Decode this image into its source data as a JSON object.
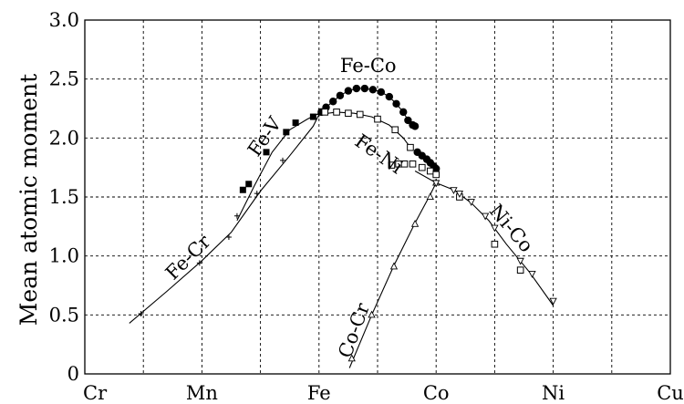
{
  "chart_data": {
    "type": "scatter",
    "title": "",
    "xlabel": "",
    "ylabel": "Mean atomic moment",
    "categories": [
      "Cr",
      "Mn",
      "Fe",
      "Co",
      "Ni",
      "Cu"
    ],
    "x_category_positions": [
      24,
      25,
      26,
      27,
      28,
      29
    ],
    "xlim": [
      24,
      29
    ],
    "ylim": [
      0,
      3.0
    ],
    "y_ticks": [
      0,
      0.5,
      1.0,
      1.5,
      2.0,
      2.5,
      3.0
    ],
    "y_tick_labels": [
      "0",
      "0.5",
      "1.0",
      "1.5",
      "2.0",
      "2.5",
      "3.0"
    ],
    "grid": true,
    "legend": "none",
    "series": [
      {
        "name": "Fe-Co",
        "marker": "filled-circle",
        "points": [
          [
            26.02,
            2.22
          ],
          [
            26.06,
            2.26
          ],
          [
            26.12,
            2.31
          ],
          [
            26.18,
            2.36
          ],
          [
            26.25,
            2.4
          ],
          [
            26.32,
            2.42
          ],
          [
            26.39,
            2.42
          ],
          [
            26.46,
            2.41
          ],
          [
            26.53,
            2.39
          ],
          [
            26.6,
            2.35
          ],
          [
            26.66,
            2.29
          ],
          [
            26.72,
            2.22
          ],
          [
            26.76,
            2.15
          ],
          [
            26.8,
            2.11
          ],
          [
            26.82,
            2.1
          ],
          [
            26.84,
            1.88
          ],
          [
            26.88,
            1.85
          ],
          [
            26.92,
            1.82
          ],
          [
            26.95,
            1.79
          ],
          [
            26.98,
            1.76
          ],
          [
            27.0,
            1.74
          ]
        ],
        "curve": [
          [
            26.0,
            2.2
          ],
          [
            26.06,
            2.26
          ],
          [
            26.12,
            2.31
          ],
          [
            26.18,
            2.36
          ],
          [
            26.25,
            2.4
          ],
          [
            26.32,
            2.42
          ],
          [
            26.39,
            2.42
          ],
          [
            26.46,
            2.41
          ],
          [
            26.53,
            2.39
          ],
          [
            26.6,
            2.35
          ],
          [
            26.66,
            2.29
          ],
          [
            26.72,
            2.22
          ],
          [
            26.76,
            2.15
          ],
          [
            26.82,
            2.1
          ]
        ]
      },
      {
        "name": "Fe-V",
        "marker": "filled-square",
        "points": [
          [
            25.35,
            1.56
          ],
          [
            25.4,
            1.61
          ],
          [
            25.55,
            1.88
          ],
          [
            25.72,
            2.05
          ],
          [
            25.8,
            2.13
          ],
          [
            25.95,
            2.18
          ],
          [
            26.02,
            2.22
          ]
        ],
        "curve": [
          [
            25.3,
            1.3
          ],
          [
            25.45,
            1.6
          ],
          [
            25.6,
            1.88
          ],
          [
            25.75,
            2.07
          ],
          [
            25.9,
            2.16
          ],
          [
            26.02,
            2.22
          ]
        ]
      },
      {
        "name": "Fe-Ni",
        "marker": "open-square",
        "points": [
          [
            26.05,
            2.22
          ],
          [
            26.15,
            2.22
          ],
          [
            26.25,
            2.21
          ],
          [
            26.35,
            2.2
          ],
          [
            26.5,
            2.16
          ],
          [
            26.65,
            2.07
          ],
          [
            26.78,
            1.92
          ],
          [
            26.62,
            1.77
          ],
          [
            26.68,
            1.78
          ],
          [
            26.73,
            1.78
          ],
          [
            26.8,
            1.78
          ],
          [
            26.88,
            1.75
          ],
          [
            26.95,
            1.72
          ],
          [
            27.0,
            1.69
          ],
          [
            27.2,
            1.5
          ],
          [
            27.5,
            1.1
          ],
          [
            27.72,
            0.88
          ]
        ],
        "curve": [
          [
            26.0,
            2.2
          ],
          [
            26.15,
            2.22
          ],
          [
            26.3,
            2.21
          ],
          [
            26.45,
            2.18
          ],
          [
            26.6,
            2.11
          ],
          [
            26.72,
            2.0
          ],
          [
            26.78,
            1.92
          ]
        ]
      },
      {
        "name": "Fe-Cr",
        "marker": "plus",
        "points": [
          [
            24.48,
            0.51
          ],
          [
            24.98,
            0.94
          ],
          [
            25.23,
            1.16
          ],
          [
            25.3,
            1.34
          ],
          [
            25.47,
            1.53
          ],
          [
            25.69,
            1.81
          ],
          [
            26.0,
            2.2
          ]
        ],
        "curve": [
          [
            24.38,
            0.43
          ],
          [
            24.7,
            0.7
          ],
          [
            25.0,
            0.96
          ],
          [
            25.25,
            1.2
          ],
          [
            25.5,
            1.55
          ],
          [
            25.75,
            1.85
          ],
          [
            25.95,
            2.1
          ],
          [
            26.0,
            2.2
          ]
        ]
      },
      {
        "name": "Co-Cr",
        "marker": "open-triangle-up",
        "points": [
          [
            26.28,
            0.13
          ],
          [
            26.45,
            0.5
          ],
          [
            26.64,
            0.91
          ],
          [
            26.82,
            1.27
          ],
          [
            26.95,
            1.5
          ],
          [
            27.0,
            1.62
          ]
        ],
        "curve": [
          [
            26.26,
            0.05
          ],
          [
            26.45,
            0.5
          ],
          [
            26.64,
            0.92
          ],
          [
            26.82,
            1.28
          ],
          [
            26.95,
            1.52
          ],
          [
            27.0,
            1.62
          ]
        ]
      },
      {
        "name": "Ni-Co",
        "marker": "open-triangle-down",
        "points": [
          [
            27.0,
            1.62
          ],
          [
            27.15,
            1.56
          ],
          [
            27.2,
            1.53
          ],
          [
            27.3,
            1.46
          ],
          [
            27.42,
            1.34
          ],
          [
            27.5,
            1.24
          ],
          [
            27.72,
            0.96
          ],
          [
            27.82,
            0.85
          ],
          [
            28.0,
            0.62
          ]
        ],
        "curve": [
          [
            26.82,
            1.72
          ],
          [
            27.0,
            1.62
          ],
          [
            27.15,
            1.56
          ],
          [
            27.3,
            1.45
          ],
          [
            27.45,
            1.3
          ],
          [
            27.6,
            1.1
          ],
          [
            27.8,
            0.86
          ],
          [
            28.0,
            0.58
          ]
        ]
      }
    ],
    "annotations": [
      {
        "text": "Fe-Co",
        "x": 26.42,
        "y": 2.56,
        "rotate": 0
      },
      {
        "text": "Fe-V",
        "x": 25.58,
        "y": 1.98,
        "rotate": -55
      },
      {
        "text": "Fe-Ni",
        "x": 26.48,
        "y": 1.82,
        "rotate": 35
      },
      {
        "text": "Fe-Cr",
        "x": 24.92,
        "y": 0.95,
        "rotate": -45
      },
      {
        "text": "Co-Cr",
        "x": 26.35,
        "y": 0.35,
        "rotate": -70
      },
      {
        "text": "Ni-Co",
        "x": 27.6,
        "y": 1.2,
        "rotate": 50
      }
    ]
  }
}
